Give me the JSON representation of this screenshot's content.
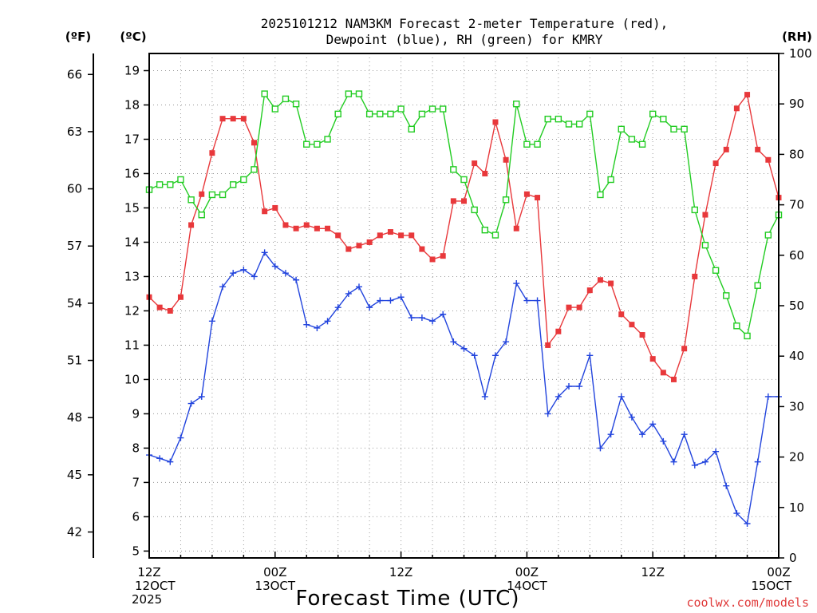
{
  "chart_data": {
    "type": "line",
    "title_line1": "2025101212 NAM3KM Forecast 2-meter Temperature (red),",
    "title_line2": "Dewpoint (blue), RH (green) for KMRY",
    "xlabel": "Forecast Time (UTC)",
    "credit": "coolwx.com/models",
    "units": {
      "fahrenheit": "(ºF)",
      "celsius": "(ºC)",
      "rh": "(RH)"
    },
    "x_range_hours": [
      0,
      60
    ],
    "celsius_range": [
      4.8,
      19.5
    ],
    "rh_range": [
      0,
      100
    ],
    "grid": true,
    "x_ticks": [
      {
        "hour": 0,
        "lines": [
          "12Z",
          "12OCT",
          "2025"
        ]
      },
      {
        "hour": 12,
        "lines": [
          "00Z",
          "13OCT"
        ]
      },
      {
        "hour": 24,
        "lines": [
          "12Z"
        ]
      },
      {
        "hour": 36,
        "lines": [
          "00Z",
          "14OCT"
        ]
      },
      {
        "hour": 48,
        "lines": [
          "12Z"
        ]
      },
      {
        "hour": 60,
        "lines": [
          "00Z",
          "15OCT"
        ]
      }
    ],
    "celsius_ticks": [
      5,
      6,
      7,
      8,
      9,
      10,
      11,
      12,
      13,
      14,
      15,
      16,
      17,
      18,
      19
    ],
    "fahrenheit_ticks": [
      42,
      45,
      48,
      51,
      54,
      57,
      60,
      63,
      66
    ],
    "rh_ticks": [
      0,
      10,
      20,
      30,
      40,
      50,
      60,
      70,
      80,
      90,
      100
    ],
    "colors": {
      "temperature": "#e8383b",
      "dewpoint": "#2244dd",
      "rh": "#22cc22",
      "grid": "#999999"
    },
    "hours": [
      0,
      1,
      2,
      3,
      4,
      5,
      6,
      7,
      8,
      9,
      10,
      11,
      12,
      13,
      14,
      15,
      16,
      17,
      18,
      19,
      20,
      21,
      22,
      23,
      24,
      25,
      26,
      27,
      28,
      29,
      30,
      31,
      32,
      33,
      34,
      35,
      36,
      37,
      38,
      39,
      40,
      41,
      42,
      43,
      44,
      45,
      46,
      47,
      48,
      49,
      50,
      51,
      52,
      53,
      54,
      55,
      56,
      57,
      58,
      59,
      60
    ],
    "series": [
      {
        "name": "Temperature",
        "axis": "celsius",
        "marker": "filled-square",
        "values": [
          12.4,
          12.1,
          12.0,
          12.4,
          14.5,
          15.4,
          16.6,
          17.6,
          17.6,
          17.6,
          16.9,
          14.9,
          15.0,
          14.5,
          14.4,
          14.5,
          14.4,
          14.4,
          14.2,
          13.8,
          13.9,
          14.0,
          14.2,
          14.3,
          14.2,
          14.2,
          13.8,
          13.5,
          13.6,
          15.2,
          15.2,
          16.3,
          16.0,
          17.5,
          16.4,
          14.4,
          15.4,
          15.3,
          11.0,
          11.4,
          12.1,
          12.1,
          12.6,
          12.9,
          12.8,
          11.9,
          11.6,
          11.3,
          10.6,
          10.2,
          10.0,
          10.9,
          13.0,
          14.8,
          16.3,
          16.7,
          17.9,
          18.3,
          16.7,
          16.4,
          15.3
        ]
      },
      {
        "name": "Dewpoint",
        "axis": "celsius",
        "marker": "plus",
        "values": [
          7.8,
          7.7,
          7.6,
          8.3,
          9.3,
          9.5,
          11.7,
          12.7,
          13.1,
          13.2,
          13.0,
          13.7,
          13.3,
          13.1,
          12.9,
          11.6,
          11.5,
          11.7,
          12.1,
          12.5,
          12.7,
          12.1,
          12.3,
          12.3,
          12.4,
          11.8,
          11.8,
          11.7,
          11.9,
          11.1,
          10.9,
          10.7,
          9.5,
          10.7,
          11.1,
          12.8,
          12.3,
          12.3,
          9.0,
          9.5,
          9.8,
          9.8,
          10.7,
          8.0,
          8.4,
          9.5,
          8.9,
          8.4,
          8.7,
          8.2,
          7.6,
          8.4,
          7.5,
          7.6,
          7.9,
          6.9,
          6.1,
          5.8,
          7.6,
          9.5,
          9.5
        ]
      },
      {
        "name": "RH",
        "axis": "rh",
        "marker": "open-square",
        "values": [
          73,
          74,
          74,
          75,
          71,
          68,
          72,
          72,
          74,
          75,
          77,
          92,
          89,
          91,
          90,
          82,
          82,
          83,
          88,
          92,
          92,
          88,
          88,
          88,
          89,
          85,
          88,
          89,
          89,
          77,
          75,
          69,
          65,
          64,
          71,
          90,
          82,
          82,
          87,
          87,
          86,
          86,
          88,
          72,
          75,
          85,
          83,
          82,
          88,
          87,
          85,
          85,
          69,
          62,
          57,
          52,
          46,
          44,
          54,
          64,
          68
        ]
      }
    ]
  }
}
